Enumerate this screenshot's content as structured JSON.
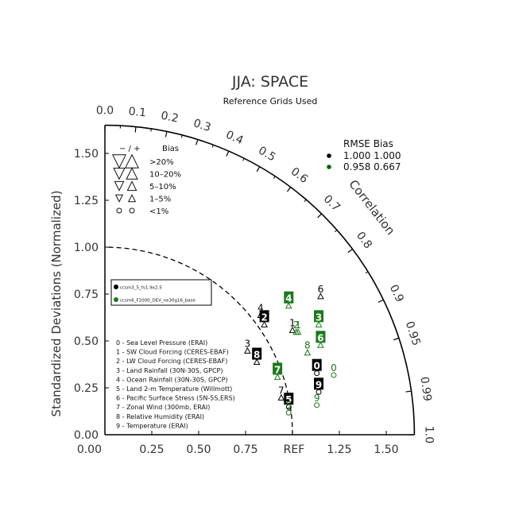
{
  "chart_data": {
    "type": "scatter",
    "subtype": "taylor-diagram",
    "title": "JJA: SPACE",
    "subtitle": "Reference Grids Used",
    "ylabel": "Standardized Deviations (Normalized)",
    "correlation_label": "Correlation",
    "ref_label": "REF",
    "x_ticks": [
      "0.00",
      "0.25",
      "0.50",
      "0.75",
      "1.25",
      "1.50"
    ],
    "y_ticks": [
      "0.00",
      "0.25",
      "0.50",
      "0.75",
      "1.00",
      "1.25",
      "1.50"
    ],
    "corr_ticks": [
      "0.0",
      "0.1",
      "0.2",
      "0.3",
      "0.4",
      "0.5",
      "0.6",
      "0.7",
      "0.8",
      "0.9",
      "0.95",
      "0.99",
      "1.0"
    ],
    "xlim": [
      0,
      1.65
    ],
    "ylim": [
      0,
      1.65
    ],
    "bias_legend": {
      "header_signs": "− / +",
      "header_bias": "Bias",
      "rows": [
        {
          "label": ">20%",
          "symbol": "triangle",
          "size": 4
        },
        {
          "label": "10–20%",
          "symbol": "triangle",
          "size": 3
        },
        {
          "label": "5–10%",
          "symbol": "triangle",
          "size": 2
        },
        {
          "label": "1–5%",
          "symbol": "triangle",
          "size": 1
        },
        {
          "label": "<1%",
          "symbol": "circle",
          "size": 1
        }
      ]
    },
    "rmse_legend": {
      "header": "RMSE  Bias",
      "rows": [
        {
          "color": "#000000",
          "values": "1.000 1.000"
        },
        {
          "color": "#006400",
          "values": "0.958 0.667"
        }
      ]
    },
    "cases": [
      {
        "name": "ccsm3_5_fv1.9x2.5",
        "color": "#000000"
      },
      {
        "name": "ccsm6_F2000_DEV_ne30g16_base",
        "color": "#1a7a1a"
      }
    ],
    "variables": [
      "0 - Sea Level Pressure (ERAI)",
      "1 - SW Cloud Forcing (CERES-EBAF)",
      "2 - LW Cloud Forcing (CERES-EBAF)",
      "3 - Land Rainfall (30N-30S, GPCP)",
      "4 - Ocean Rainfall (30N-30S, GPCP)",
      "5 - Land 2-m Temperature (Willmott)",
      "6 - Pacific Surface Stress (5N-5S,ERS)",
      "7 - Zonal Wind (300mb, ERAI)",
      "8 - Relative Humidity (ERAI)",
      "9 - Temperature (ERAI)"
    ],
    "series": [
      {
        "name": "ccsm3_5_fv1.9x2.5",
        "color": "#000000",
        "points": [
          {
            "id": "0",
            "x": 1.13,
            "y": 0.37,
            "boxed": true,
            "bias": "circle"
          },
          {
            "id": "1",
            "x": 1.0,
            "y": 0.6,
            "boxed": false,
            "bias": "up"
          },
          {
            "id": "2",
            "x": 0.85,
            "y": 0.63,
            "boxed": true,
            "bias": "up"
          },
          {
            "id": "3",
            "x": 0.76,
            "y": 0.49,
            "boxed": false,
            "bias": "up"
          },
          {
            "id": "4",
            "x": 0.83,
            "y": 0.68,
            "boxed": false,
            "bias": "up"
          },
          {
            "id": "5",
            "x": 0.98,
            "y": 0.19,
            "boxed": true,
            "bias": "circle"
          },
          {
            "id": "6",
            "x": 1.15,
            "y": 0.78,
            "boxed": false,
            "bias": "up"
          },
          {
            "id": "7",
            "x": 0.94,
            "y": 0.24,
            "boxed": false,
            "bias": "up"
          },
          {
            "id": "8",
            "x": 0.81,
            "y": 0.43,
            "boxed": true,
            "bias": "up"
          },
          {
            "id": "9",
            "x": 1.14,
            "y": 0.27,
            "boxed": true,
            "bias": "circle"
          }
        ]
      },
      {
        "name": "ccsm6_F2000_DEV_ne30g16_base",
        "color": "#1a7a1a",
        "points": [
          {
            "id": "0",
            "x": 1.22,
            "y": 0.36,
            "boxed": false,
            "bias": "circle"
          },
          {
            "id": "1",
            "x": 1.03,
            "y": 0.59,
            "boxed": false,
            "bias": "up"
          },
          {
            "id": "2",
            "x": 1.02,
            "y": 0.59,
            "boxed": false,
            "bias": "up"
          },
          {
            "id": "3",
            "x": 1.14,
            "y": 0.63,
            "boxed": true,
            "bias": "up"
          },
          {
            "id": "4",
            "x": 0.98,
            "y": 0.73,
            "boxed": true,
            "bias": "up"
          },
          {
            "id": "5",
            "x": 0.98,
            "y": 0.16,
            "boxed": false,
            "bias": "circle"
          },
          {
            "id": "6",
            "x": 1.15,
            "y": 0.52,
            "boxed": true,
            "bias": "up"
          },
          {
            "id": "7",
            "x": 0.92,
            "y": 0.35,
            "boxed": true,
            "bias": "up"
          },
          {
            "id": "8",
            "x": 1.08,
            "y": 0.48,
            "boxed": false,
            "bias": "up"
          },
          {
            "id": "9",
            "x": 1.13,
            "y": 0.2,
            "boxed": false,
            "bias": "circle"
          }
        ]
      }
    ]
  }
}
